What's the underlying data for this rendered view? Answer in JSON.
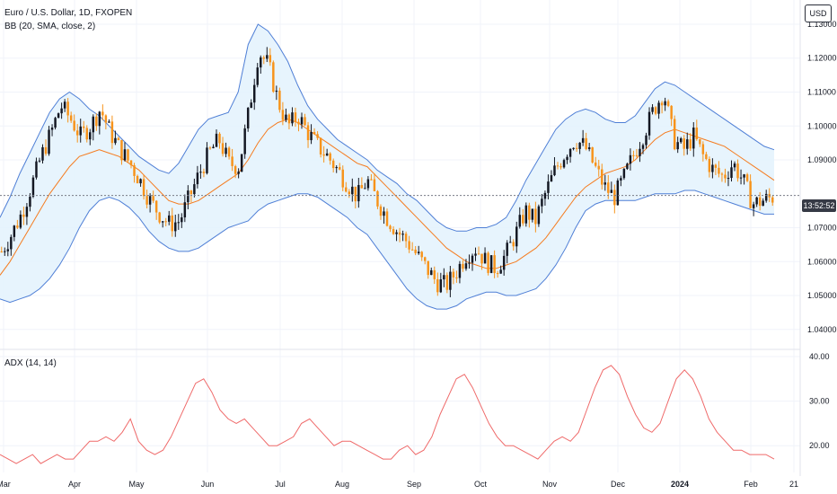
{
  "header": {
    "title": "Euro / U.S. Dollar, 1D, FXOPEN",
    "indicator": "BB (20, SMA, close, 2)",
    "currency_button": "USD",
    "time_badge": "13:52:52"
  },
  "adx_pane": {
    "label": "ADX (14, 14)"
  },
  "colors": {
    "bull": "#131722",
    "bear": "#f7931a",
    "bb_band": "#4f7fd6",
    "bb_fill": "#e3f2fd",
    "bb_basis": "#f57c20",
    "adx_line": "#ef6a6a"
  },
  "chart_data": [
    {
      "type": "candlestick",
      "title": "Euro / U.S. Dollar, 1D, FXOPEN",
      "price_axis_ticks": [
        "1.13000",
        "1.12000",
        "1.11000",
        "1.10000",
        "1.09000",
        "1.07000",
        "1.06000",
        "1.05000",
        "1.04000"
      ],
      "ylim": [
        1.0365,
        1.1345
      ],
      "time_axis_labels": [
        "Mar",
        "Apr",
        "May",
        "Jun",
        "Jul",
        "Aug",
        "Sep",
        "Oct",
        "Nov",
        "Dec",
        "2024",
        "Feb",
        "21"
      ],
      "current_price_line": 1.0795,
      "grid": true,
      "close_series": [
        1.063,
        1.068,
        1.074,
        1.082,
        1.091,
        1.098,
        1.106,
        1.102,
        1.097,
        1.1,
        1.105,
        1.098,
        1.093,
        1.089,
        1.084,
        1.078,
        1.074,
        1.071,
        1.072,
        1.079,
        1.086,
        1.092,
        1.096,
        1.089,
        1.088,
        1.104,
        1.122,
        1.118,
        1.107,
        1.1,
        1.103,
        1.098,
        1.094,
        1.091,
        1.087,
        1.083,
        1.079,
        1.084,
        1.078,
        1.073,
        1.069,
        1.066,
        1.062,
        1.058,
        1.054,
        1.053,
        1.057,
        1.062,
        1.064,
        1.06,
        1.058,
        1.062,
        1.068,
        1.075,
        1.072,
        1.08,
        1.087,
        1.092,
        1.096,
        1.094,
        1.088,
        1.082,
        1.079,
        1.085,
        1.092,
        1.098,
        1.105,
        1.11,
        1.096,
        1.093,
        1.097,
        1.091,
        1.087,
        1.085,
        1.089,
        1.084,
        1.077,
        1.078,
        1.079
      ],
      "bollinger": {
        "upper": [
          1.073,
          1.079,
          1.086,
          1.092,
          1.098,
          1.104,
          1.108,
          1.11,
          1.108,
          1.105,
          1.103,
          1.1,
          1.097,
          1.094,
          1.091,
          1.089,
          1.087,
          1.086,
          1.089,
          1.094,
          1.099,
          1.102,
          1.103,
          1.104,
          1.11,
          1.124,
          1.13,
          1.128,
          1.124,
          1.119,
          1.112,
          1.106,
          1.102,
          1.099,
          1.096,
          1.094,
          1.092,
          1.09,
          1.087,
          1.085,
          1.083,
          1.08,
          1.078,
          1.075,
          1.072,
          1.07,
          1.069,
          1.069,
          1.07,
          1.07,
          1.071,
          1.073,
          1.078,
          1.084,
          1.089,
          1.094,
          1.099,
          1.102,
          1.104,
          1.105,
          1.104,
          1.102,
          1.101,
          1.101,
          1.103,
          1.107,
          1.111,
          1.113,
          1.112,
          1.11,
          1.108,
          1.106,
          1.104,
          1.102,
          1.1,
          1.098,
          1.096,
          1.094,
          1.093
        ],
        "basis": [
          1.056,
          1.06,
          1.065,
          1.07,
          1.075,
          1.08,
          1.084,
          1.088,
          1.091,
          1.092,
          1.093,
          1.092,
          1.091,
          1.089,
          1.087,
          1.084,
          1.081,
          1.078,
          1.077,
          1.077,
          1.078,
          1.08,
          1.082,
          1.084,
          1.086,
          1.09,
          1.095,
          1.099,
          1.101,
          1.102,
          1.101,
          1.099,
          1.097,
          1.095,
          1.093,
          1.091,
          1.089,
          1.088,
          1.085,
          1.082,
          1.079,
          1.076,
          1.073,
          1.07,
          1.067,
          1.064,
          1.062,
          1.06,
          1.059,
          1.058,
          1.058,
          1.059,
          1.06,
          1.062,
          1.064,
          1.067,
          1.071,
          1.075,
          1.079,
          1.082,
          1.084,
          1.086,
          1.087,
          1.088,
          1.09,
          1.093,
          1.096,
          1.098,
          1.099,
          1.098,
          1.097,
          1.096,
          1.095,
          1.094,
          1.092,
          1.09,
          1.088,
          1.086,
          1.084
        ],
        "lower": [
          1.049,
          1.048,
          1.049,
          1.05,
          1.052,
          1.055,
          1.059,
          1.064,
          1.07,
          1.075,
          1.078,
          1.079,
          1.078,
          1.076,
          1.073,
          1.069,
          1.066,
          1.064,
          1.063,
          1.063,
          1.064,
          1.066,
          1.068,
          1.07,
          1.071,
          1.072,
          1.075,
          1.077,
          1.078,
          1.079,
          1.08,
          1.08,
          1.079,
          1.077,
          1.075,
          1.073,
          1.07,
          1.068,
          1.064,
          1.06,
          1.056,
          1.052,
          1.049,
          1.047,
          1.046,
          1.046,
          1.047,
          1.049,
          1.05,
          1.051,
          1.051,
          1.05,
          1.05,
          1.051,
          1.052,
          1.055,
          1.059,
          1.064,
          1.07,
          1.075,
          1.077,
          1.078,
          1.078,
          1.078,
          1.078,
          1.079,
          1.08,
          1.08,
          1.08,
          1.081,
          1.081,
          1.08,
          1.079,
          1.078,
          1.077,
          1.076,
          1.075,
          1.074,
          1.074
        ]
      }
    },
    {
      "type": "line",
      "title": "ADX (14, 14)",
      "axis_ticks": [
        "40.00",
        "30.00",
        "20.00"
      ],
      "ylim": [
        14,
        41
      ],
      "values": [
        18,
        17,
        16,
        17,
        18,
        16,
        17,
        18,
        17,
        17,
        19,
        21,
        21,
        22,
        21,
        23,
        26,
        21,
        19,
        18,
        19,
        22,
        26,
        30,
        34,
        35,
        32,
        28,
        26,
        25,
        26,
        24,
        22,
        20,
        20,
        21,
        22,
        25,
        26,
        24,
        22,
        20,
        21,
        21,
        20,
        19,
        18,
        17,
        17,
        19,
        20,
        18,
        19,
        22,
        27,
        31,
        35,
        36,
        33,
        29,
        25,
        22,
        20,
        20,
        19,
        18,
        17,
        19,
        21,
        22,
        21,
        23,
        28,
        33,
        37,
        38,
        36,
        31,
        27,
        24,
        23,
        25,
        30,
        35,
        37,
        35,
        31,
        26,
        23,
        21,
        19,
        19,
        18,
        18,
        18,
        17
      ]
    }
  ]
}
